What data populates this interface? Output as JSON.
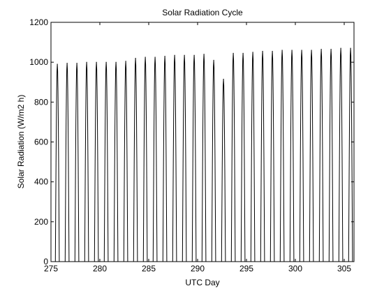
{
  "chart_data": {
    "type": "line",
    "title": "Solar Radiation Cycle",
    "xlabel": "UTC Day",
    "ylabel": "Solar Radiation (W/m2 h)",
    "xlim": [
      275,
      306
    ],
    "ylim": [
      0,
      1200
    ],
    "xticks": [
      275,
      280,
      285,
      290,
      295,
      300,
      305
    ],
    "yticks": [
      0,
      200,
      400,
      600,
      800,
      1000,
      1200
    ],
    "grid": false,
    "series": [
      {
        "color": "#000000",
        "daily_peaks": [
          {
            "day": 275,
            "peak": 990
          },
          {
            "day": 276,
            "peak": 995
          },
          {
            "day": 277,
            "peak": 995
          },
          {
            "day": 278,
            "peak": 1000
          },
          {
            "day": 279,
            "peak": 1000
          },
          {
            "day": 280,
            "peak": 1000
          },
          {
            "day": 281,
            "peak": 1000
          },
          {
            "day": 282,
            "peak": 1005
          },
          {
            "day": 283,
            "peak": 1020
          },
          {
            "day": 284,
            "peak": 1025
          },
          {
            "day": 285,
            "peak": 1025
          },
          {
            "day": 286,
            "peak": 1030
          },
          {
            "day": 287,
            "peak": 1035
          },
          {
            "day": 288,
            "peak": 1035
          },
          {
            "day": 289,
            "peak": 1035
          },
          {
            "day": 290,
            "peak": 1040
          },
          {
            "day": 291,
            "peak": 1010
          },
          {
            "day": 292,
            "peak": 915
          },
          {
            "day": 293,
            "peak": 1045
          },
          {
            "day": 294,
            "peak": 1045
          },
          {
            "day": 295,
            "peak": 1050
          },
          {
            "day": 296,
            "peak": 1055
          },
          {
            "day": 297,
            "peak": 1055
          },
          {
            "day": 298,
            "peak": 1060
          },
          {
            "day": 299,
            "peak": 1060
          },
          {
            "day": 300,
            "peak": 1060
          },
          {
            "day": 301,
            "peak": 1060
          },
          {
            "day": 302,
            "peak": 1065
          },
          {
            "day": 303,
            "peak": 1065
          },
          {
            "day": 304,
            "peak": 1070
          },
          {
            "day": 305,
            "peak": 1070
          }
        ]
      }
    ]
  }
}
